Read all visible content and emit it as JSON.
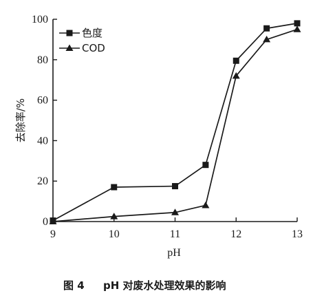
{
  "chart_data": {
    "type": "line",
    "xlabel": "pH",
    "ylabel": "去除率/%",
    "xlim": [
      9,
      13
    ],
    "ylim": [
      0,
      100
    ],
    "x_ticks": [
      "9",
      "10",
      "11",
      "12",
      "13"
    ],
    "y_ticks": [
      "0",
      "20",
      "40",
      "60",
      "80",
      "100"
    ],
    "legend_position": "top-left",
    "series": [
      {
        "name": "色度",
        "marker": "square",
        "x": [
          9,
          10,
          11,
          11.5,
          12,
          12.5,
          13
        ],
        "values": [
          0.5,
          17,
          17.5,
          28,
          79.5,
          95.5,
          98
        ]
      },
      {
        "name": "COD",
        "marker": "triangle",
        "x": [
          9,
          10,
          11,
          11.5,
          12,
          12.5,
          13
        ],
        "values": [
          0,
          2.5,
          4.5,
          8,
          72,
          90,
          95
        ]
      }
    ],
    "caption_number": "图 4",
    "caption_text": "pH 对废水处理效果的影响"
  }
}
